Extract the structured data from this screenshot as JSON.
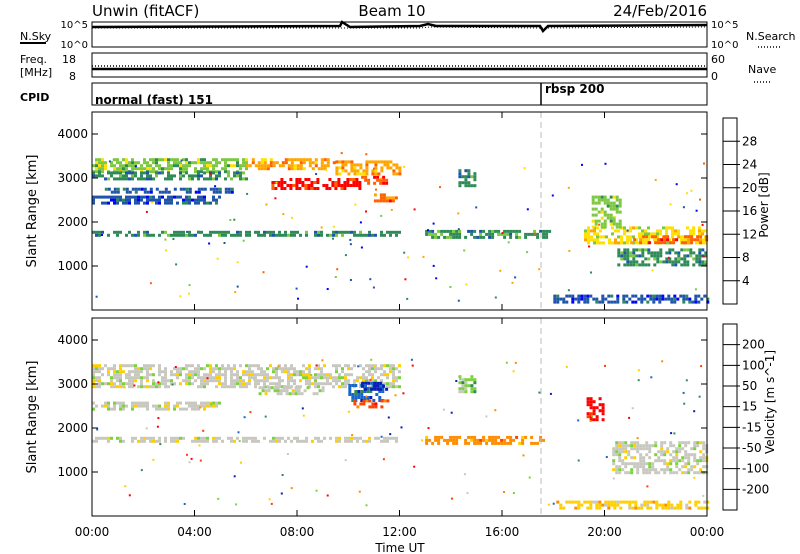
{
  "header": {
    "title": "Unwin (fitACF)",
    "beam": "Beam 10",
    "date": "24/Feb/2016"
  },
  "panels": {
    "nsky_label": "N.Sky",
    "nsearch_label": "N.Search",
    "freq_label_1": "Freq.",
    "freq_label_2": "[MHz]",
    "nave_label": "Nave",
    "cpid_label": "CPID",
    "nsky_ticks": [
      "10^5",
      "10^0"
    ],
    "nsearch_ticks": [
      "10^5",
      "10^0"
    ],
    "freq_ticks": [
      "18",
      "8"
    ],
    "nave_ticks": [
      "60",
      "0"
    ]
  },
  "cpid": {
    "segments": [
      {
        "label": "normal (fast) 151",
        "start_hour": 0
      },
      {
        "label": "rbsp 200",
        "start_hour": 18.1
      }
    ]
  },
  "chart_data": [
    {
      "type": "heatmap",
      "name": "power",
      "xlabel": "Time UT",
      "ylabel": "Slant Range [km]",
      "xlim": [
        0,
        24
      ],
      "ylim": [
        0,
        4500
      ],
      "xticks": [
        0,
        4,
        8,
        12,
        16,
        20,
        24
      ],
      "xtick_labels": [
        "00:00",
        "04:00",
        "08:00",
        "12:00",
        "16:00",
        "20:00",
        "00:00"
      ],
      "yticks": [
        1000,
        2000,
        3000,
        4000
      ],
      "ytick_labels": [
        "1000",
        "2000",
        "3000",
        "4000"
      ],
      "colorbar": {
        "label": "Power [dB]",
        "tick_labels": [
          "4",
          "8",
          "12",
          "16",
          "20",
          "24",
          "28"
        ],
        "colors": [
          "#0000ff",
          "#1f55a8",
          "#2e8b57",
          "#7cc840",
          "#ffe000",
          "#ffa500",
          "#ff6000",
          "#ff0000"
        ]
      },
      "regions": [
        {
          "t0": 0.0,
          "t1": 6.0,
          "r0": 3150,
          "r1": 3450,
          "level": 3
        },
        {
          "t0": 6.0,
          "t1": 9.5,
          "r0": 3200,
          "r1": 3450,
          "level": 5
        },
        {
          "t0": 9.5,
          "t1": 12.0,
          "r0": 3100,
          "r1": 3400,
          "level": 5
        },
        {
          "t0": 0.0,
          "t1": 6.0,
          "r0": 2950,
          "r1": 3150,
          "level": 2
        },
        {
          "t0": 0.0,
          "t1": 5.0,
          "r0": 2450,
          "r1": 2600,
          "level": 1
        },
        {
          "t0": 0.5,
          "t1": 5.5,
          "r0": 2680,
          "r1": 2780,
          "level": 1
        },
        {
          "t0": 7.0,
          "t1": 10.5,
          "r0": 2750,
          "r1": 3000,
          "level": 7
        },
        {
          "t0": 10.5,
          "t1": 11.5,
          "r0": 2850,
          "r1": 3050,
          "level": 6
        },
        {
          "t0": 11.0,
          "t1": 12.0,
          "r0": 2500,
          "r1": 2650,
          "level": 6
        },
        {
          "t0": 0.0,
          "t1": 12.0,
          "r0": 1700,
          "r1": 1800,
          "level": 2
        },
        {
          "t0": 13.0,
          "t1": 17.9,
          "r0": 1680,
          "r1": 1820,
          "level": 2
        },
        {
          "t0": 14.3,
          "t1": 15.0,
          "r0": 2800,
          "r1": 3200,
          "level": 2
        },
        {
          "t0": 19.2,
          "t1": 24.0,
          "r0": 1500,
          "r1": 1900,
          "level": 4
        },
        {
          "t0": 20.5,
          "t1": 24.0,
          "r0": 1000,
          "r1": 1400,
          "level": 2
        },
        {
          "t0": 21.0,
          "t1": 24.0,
          "r0": 1550,
          "r1": 1700,
          "level": 6
        },
        {
          "t0": 18.0,
          "t1": 24.0,
          "r0": 150,
          "r1": 350,
          "level": 1
        },
        {
          "t0": 19.5,
          "t1": 20.6,
          "r0": 1900,
          "r1": 2600,
          "level": 3
        }
      ]
    },
    {
      "type": "heatmap",
      "name": "velocity",
      "xlabel": "Time UT",
      "ylabel": "Slant Range [km]",
      "xlim": [
        0,
        24
      ],
      "ylim": [
        0,
        4500
      ],
      "xticks": [
        0,
        4,
        8,
        12,
        16,
        20,
        24
      ],
      "xtick_labels": [
        "00:00",
        "04:00",
        "08:00",
        "12:00",
        "16:00",
        "20:00",
        "00:00"
      ],
      "yticks": [
        1000,
        2000,
        3000,
        4000
      ],
      "ytick_labels": [
        "1000",
        "2000",
        "3000",
        "4000"
      ],
      "colorbar": {
        "label": "Velocity [m s^-1]",
        "tick_labels": [
          "200",
          "100",
          "50",
          "15",
          "-15",
          "-50",
          "-100",
          "-200"
        ],
        "colors": [
          "#0a1fb5",
          "#1a66cc",
          "#2e8b57",
          "#7cd23c",
          "#c8c8c0",
          "#ffd000",
          "#ff8c00",
          "#ff4000",
          "#ff0000"
        ]
      },
      "regions": [
        {
          "t0": 0.0,
          "t1": 12.0,
          "r0": 2950,
          "r1": 3450,
          "level": 4
        },
        {
          "t0": 0.0,
          "t1": 5.0,
          "r0": 2450,
          "r1": 2600,
          "level": 4
        },
        {
          "t0": 6.5,
          "t1": 9.0,
          "r0": 2750,
          "r1": 2950,
          "level": 4
        },
        {
          "t0": 10.0,
          "t1": 11.3,
          "r0": 2600,
          "r1": 3000,
          "level": 1
        },
        {
          "t0": 10.5,
          "t1": 11.5,
          "r0": 2850,
          "r1": 3050,
          "level": 0
        },
        {
          "t0": 10.2,
          "t1": 11.6,
          "r0": 2450,
          "r1": 2650,
          "level": 7
        },
        {
          "t0": 0.0,
          "t1": 12.0,
          "r0": 1700,
          "r1": 1800,
          "level": 4
        },
        {
          "t0": 13.0,
          "t1": 17.9,
          "r0": 1680,
          "r1": 1820,
          "level": 6
        },
        {
          "t0": 14.3,
          "t1": 15.0,
          "r0": 2800,
          "r1": 3200,
          "level": 3
        },
        {
          "t0": 20.3,
          "t1": 24.0,
          "r0": 1000,
          "r1": 1700,
          "level": 4
        },
        {
          "t0": 19.3,
          "t1": 19.9,
          "r0": 2200,
          "r1": 2700,
          "level": 8
        },
        {
          "t0": 18.0,
          "t1": 24.0,
          "r0": 150,
          "r1": 350,
          "level": 5
        }
      ]
    }
  ]
}
